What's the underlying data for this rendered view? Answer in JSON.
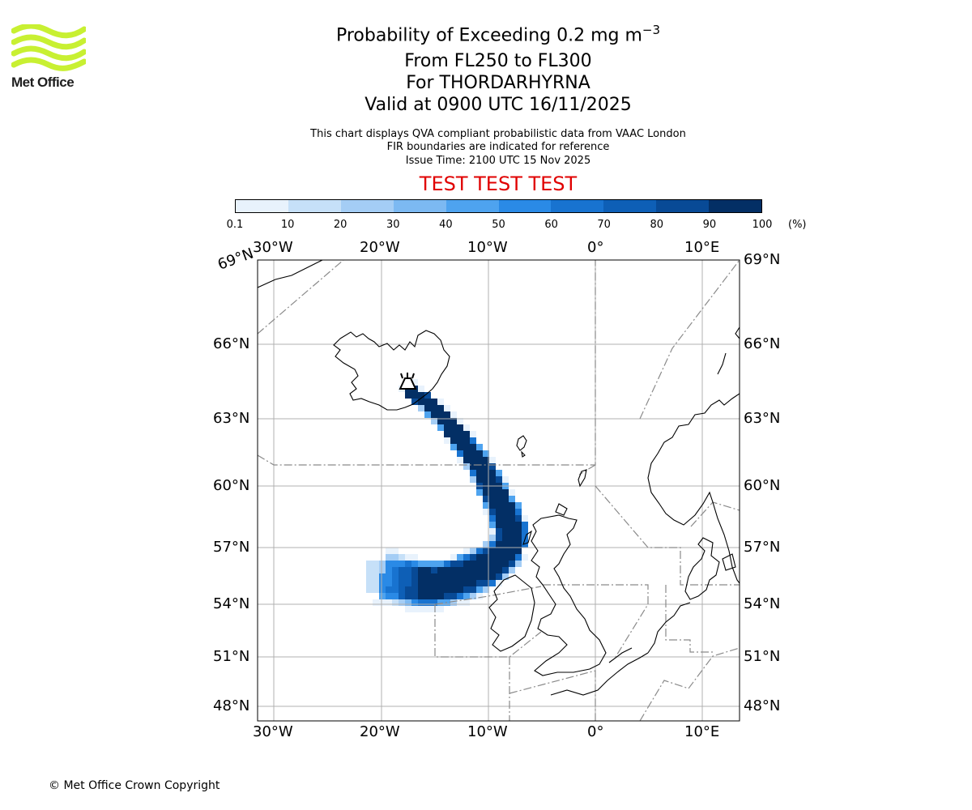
{
  "logo": {
    "text": "Met Office",
    "color": "#c8f032"
  },
  "title": {
    "main": "Probability of Exceeding 0.2 mg m",
    "unit_exponent": "−3",
    "levels": "From FL250 to FL300",
    "volcano": "For THORDARHYRNA",
    "valid": "Valid at 0900 UTC 16/11/2025"
  },
  "notes": {
    "line1": "This chart displays QVA compliant probabilistic data from VAAC London",
    "line2": "FIR boundaries are indicated for reference",
    "issue": "Issue Time: 2100 UTC 15 Nov 2025"
  },
  "test_banner": "TEST TEST TEST",
  "colorbar": {
    "ticks": [
      "0.1",
      "10",
      "20",
      "30",
      "40",
      "50",
      "60",
      "70",
      "80",
      "90",
      "100"
    ],
    "unit": "(%)",
    "colors": [
      "#e8f2fc",
      "#c6e0f8",
      "#a4cdf5",
      "#7cb9f2",
      "#4ea3ef",
      "#2a8ae6",
      "#1873d0",
      "#0e5fb6",
      "#084a96",
      "#032f65"
    ]
  },
  "map": {
    "lon_labels": [
      "30°W",
      "20°W",
      "10°W",
      "0°",
      "10°E"
    ],
    "lat_labels_left": [
      "69°N",
      "66°N",
      "63°N",
      "60°N",
      "57°N",
      "54°N",
      "51°N",
      "48°N"
    ],
    "lat_labels_right": [
      "69°N",
      "66°N",
      "63°N",
      "60°N",
      "57°N",
      "54°N",
      "51°N",
      "48°N"
    ],
    "volcano_marker": "volcano-icon"
  },
  "footer": {
    "copyright": "© Met Office Crown Copyright"
  }
}
